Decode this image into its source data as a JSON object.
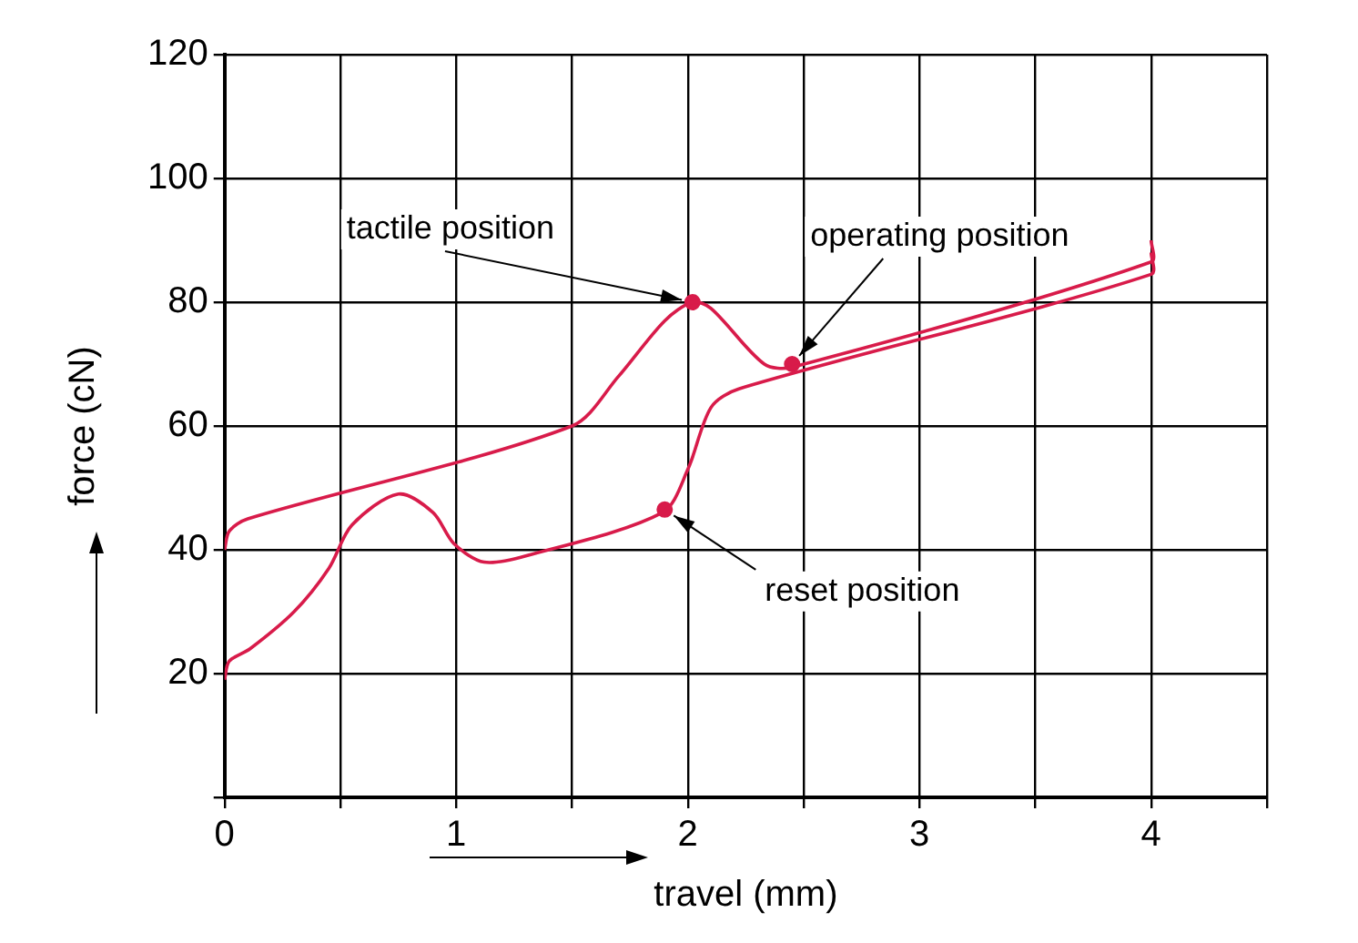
{
  "chart_data": {
    "type": "line",
    "xlabel": "travel (mm)",
    "ylabel": "force (cN)",
    "xlim": [
      0,
      4.5
    ],
    "xticks": [
      0,
      {
        "value": 0.5,
        "label": null
      },
      1,
      {
        "value": 1.5,
        "label": null
      },
      2,
      {
        "value": 2.5,
        "label": null
      },
      3,
      {
        "value": 3.5,
        "label": null
      },
      4,
      {
        "value": 4.5,
        "label": null
      }
    ],
    "ylim": [
      0,
      120
    ],
    "yticks": [
      {
        "value": 0,
        "label": null
      },
      20,
      40,
      60,
      80,
      100,
      120
    ],
    "grid": true,
    "legend": false,
    "marker": "none",
    "line_style": "solid",
    "series": [
      {
        "color": "#d81b4a",
        "x": [
          0,
          0.02,
          0.11,
          0.3,
          0.45,
          0.55,
          0.75,
          0.9,
          0.99,
          1.12,
          1.3,
          1.89,
          2.0,
          2.1,
          2.22,
          4.0,
          4.0
        ],
        "values": [
          19,
          22,
          24,
          30,
          37,
          44,
          49,
          46,
          41,
          38,
          39,
          46,
          53,
          63,
          66,
          84.5,
          88
        ]
      },
      {
        "color": "#d81b4a",
        "x": [
          0,
          0.02,
          0.1,
          1.5,
          1.7,
          1.9,
          2.02,
          2.1,
          2.33,
          2.45,
          4.0,
          4.0
        ],
        "values": [
          40,
          43,
          45,
          60,
          68,
          77,
          80,
          79,
          70,
          69.5,
          86.5,
          90
        ]
      },
      {
        "type": "scatter",
        "marker": "circle",
        "color": "#d81b4a",
        "x": [
          2.02,
          2.45,
          1.9
        ],
        "values": [
          80,
          70,
          46.5
        ]
      }
    ],
    "annotations": [
      {
        "text": "tactile position",
        "x": 2.02,
        "y": 80
      },
      {
        "text": "operating position",
        "x": 2.45,
        "y": 70
      },
      {
        "text": "reset position",
        "x": 1.9,
        "y": 46.5
      }
    ]
  }
}
